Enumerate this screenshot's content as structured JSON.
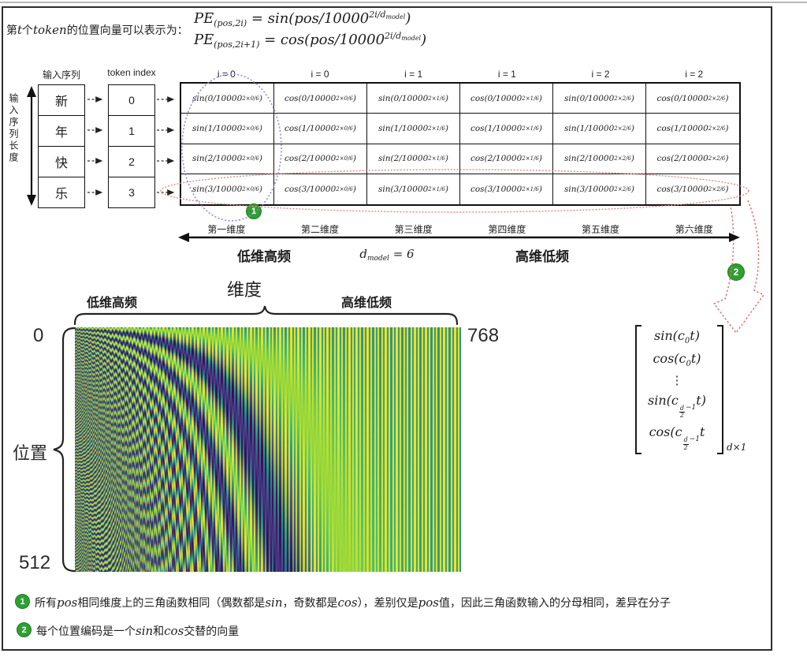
{
  "header": {
    "intro_parts": [
      {
        "t": "第",
        "m": false
      },
      {
        "t": "t",
        "m": true
      },
      {
        "t": "个",
        "m": false
      },
      {
        "t": "token",
        "m": true
      },
      {
        "t": "的位置向量可以表示为：",
        "m": false
      }
    ],
    "formulas": [
      {
        "lhs": "PE",
        "lhs_sub": "(pos,2i)",
        "eq": " = ",
        "fn": "sin(pos/10000",
        "exp": "2i/d",
        "exp_sub": "model",
        "close": ")"
      },
      {
        "lhs": "PE",
        "lhs_sub": "(pos,2i+1)",
        "eq": " = ",
        "fn": "cos(pos/10000",
        "exp": "2i/d",
        "exp_sub": "model",
        "close": ")"
      }
    ]
  },
  "sequence": {
    "axis_label": "输入序列长度",
    "col_label": "输入序列",
    "tokens": [
      "新",
      "年",
      "快",
      "乐"
    ],
    "index_label": "token index",
    "indices": [
      "0",
      "1",
      "2",
      "3"
    ]
  },
  "pe_table": {
    "col_headers": [
      "i = 0",
      "i = 0",
      "i = 1",
      "i = 1",
      "i = 2",
      "i = 2"
    ],
    "rows": [
      {
        "cells": [
          {
            "t": "sin(0/10000",
            "e": "2×0/6"
          },
          {
            "t": "cos(0/10000",
            "e": "2×0/6"
          },
          {
            "t": "sin(0/10000",
            "e": "2×1/6"
          },
          {
            "t": "cos(0/10000",
            "e": "2×1/6"
          },
          {
            "t": "sin(0/10000",
            "e": "2×2/6"
          },
          {
            "t": "cos(0/10000",
            "e": "2×2/6"
          }
        ]
      },
      {
        "cells": [
          {
            "t": "sin(1/10000",
            "e": "2×0/6"
          },
          {
            "t": "cos(1/10000",
            "e": "2×0/6"
          },
          {
            "t": "sin(1/10000",
            "e": "2×1/6"
          },
          {
            "t": "cos(1/10000",
            "e": "2×1/6"
          },
          {
            "t": "sin(1/10000",
            "e": "2×2/6"
          },
          {
            "t": "cos(1/10000",
            "e": "2×2/6"
          }
        ]
      },
      {
        "cells": [
          {
            "t": "sin(2/10000",
            "e": "2×0/6"
          },
          {
            "t": "cos(2/10000",
            "e": "2×0/6"
          },
          {
            "t": "sin(2/10000",
            "e": "2×1/6"
          },
          {
            "t": "cos(2/10000",
            "e": "2×1/6"
          },
          {
            "t": "sin(2/10000",
            "e": "2×2/6"
          },
          {
            "t": "cos(2/10000",
            "e": "2×2/6"
          }
        ]
      },
      {
        "cells": [
          {
            "t": "sin(3/10000",
            "e": "2×0/6"
          },
          {
            "t": "cos(3/10000",
            "e": "2×0/6"
          },
          {
            "t": "sin(3/10000",
            "e": "2×1/6"
          },
          {
            "t": "cos(3/10000",
            "e": "2×1/6"
          },
          {
            "t": "sin(3/10000",
            "e": "2×2/6"
          },
          {
            "t": "cos(3/10000",
            "e": "2×2/6"
          }
        ]
      }
    ],
    "dim_labels": [
      "第一维度",
      "第二维度",
      "第三维度",
      "第四维度",
      "第五维度",
      "第六维度"
    ],
    "left_note": "低维高频",
    "dmodel": {
      "d": "d",
      "sub": "model",
      "eq": " = 6"
    },
    "right_note": "高维低频"
  },
  "badges": {
    "one": "1",
    "two": "2"
  },
  "heatmap": {
    "type": "heatmap",
    "title": "维度",
    "left_note": "低维高频",
    "right_note": "高维低频",
    "ylabel": "位置",
    "y_top": "0",
    "y_bottom": "512",
    "x_right": "768",
    "d_model": 768,
    "n_positions": 512,
    "colormap": "viridis"
  },
  "vector": {
    "rows1": [
      {
        "f": "sin(c",
        "sub": "0",
        "rest": "t)"
      },
      {
        "f": "cos(c",
        "sub": "0",
        "rest": "t)"
      }
    ],
    "dots": "⋮",
    "rows2": [
      {
        "f": "sin(c",
        "num": "d",
        "den": "2",
        "minus": "−1",
        "rest": "t)"
      },
      {
        "f": "cos(c",
        "num": "d",
        "den": "2",
        "minus": "−1",
        "rest": "t"
      }
    ],
    "dim": "d×1"
  },
  "annotations": [
    {
      "badge": "1",
      "parts": [
        {
          "t": "所有",
          "m": false
        },
        {
          "t": "pos",
          "m": true
        },
        {
          "t": "相同维度上的三角函数相同（偶数都是",
          "m": false
        },
        {
          "t": "sin",
          "m": true
        },
        {
          "t": "，奇数都是",
          "m": false
        },
        {
          "t": "cos",
          "m": true
        },
        {
          "t": "），差别仅是",
          "m": false
        },
        {
          "t": "pos",
          "m": true
        },
        {
          "t": "值，因此三角函数输入的分母相同，差异在分子",
          "m": false
        }
      ]
    },
    {
      "badge": "2",
      "parts": [
        {
          "t": "每个位置编码是一个",
          "m": false
        },
        {
          "t": "sin",
          "m": true
        },
        {
          "t": "和",
          "m": false
        },
        {
          "t": "cos",
          "m": true
        },
        {
          "t": "交替的向量",
          "m": false
        }
      ]
    }
  ],
  "colors": {
    "badge_green": "#2f9e33",
    "sketch_blue": "#8c8cd8",
    "sketch_red": "#e07575",
    "ink": "#111111"
  }
}
